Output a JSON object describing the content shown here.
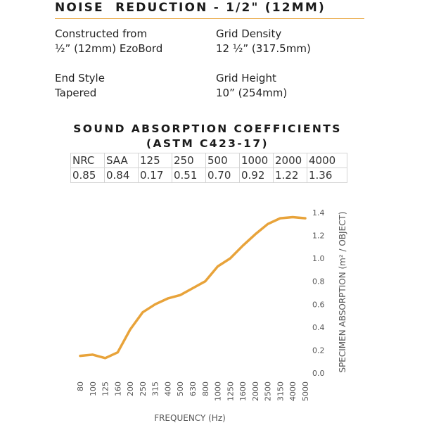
{
  "header": {
    "title": "NOISE  REDUCTION - 1/2\" (12MM)"
  },
  "specs": {
    "construction_label": "Constructed from",
    "construction_value": "½” (12mm) EzoBord",
    "grid_density_label": "Grid Density",
    "grid_density_value": "12 ½” (317.5mm)",
    "end_style_label": "End Style",
    "end_style_value": "Tapered",
    "grid_height_label": "Grid Height",
    "grid_height_value": "10” (254mm)"
  },
  "coefficients": {
    "title_line1": "SOUND ABSORPTION COEFFICIENTS",
    "title_line2": "(ASTM C423-17)",
    "headers": [
      "NRC",
      "SAA",
      "125",
      "250",
      "500",
      "1000",
      "2000",
      "4000"
    ],
    "values": [
      "0.85",
      "0.84",
      "0.17",
      "0.51",
      "0.70",
      "0.92",
      "1.22",
      "1.36"
    ]
  },
  "colors": {
    "accent": "#e8a33a",
    "line": "#e8a33a"
  },
  "chart_data": {
    "type": "line",
    "categories": [
      "80",
      "100",
      "125",
      "160",
      "200",
      "250",
      "315",
      "400",
      "500",
      "630",
      "800",
      "1000",
      "1250",
      "1600",
      "2000",
      "2500",
      "3150",
      "4000",
      "5000"
    ],
    "series": [
      {
        "values": [
          0.15,
          0.16,
          0.13,
          0.18,
          0.38,
          0.53,
          0.6,
          0.65,
          0.68,
          0.74,
          0.8,
          0.93,
          1.0,
          1.11,
          1.21,
          1.3,
          1.35,
          1.36,
          1.35
        ]
      }
    ],
    "yticks": [
      "0.0",
      "0.2",
      "0.4",
      "0.6",
      "0.8",
      "1.0",
      "1.2",
      "1.4"
    ],
    "ylim": [
      0,
      1.4
    ],
    "xlabel": "FREQUENCY (Hz)",
    "ylabel": "SPECIMEN ABSORPTION (m² / OBJECT)",
    "grid": false,
    "legend": "none"
  }
}
